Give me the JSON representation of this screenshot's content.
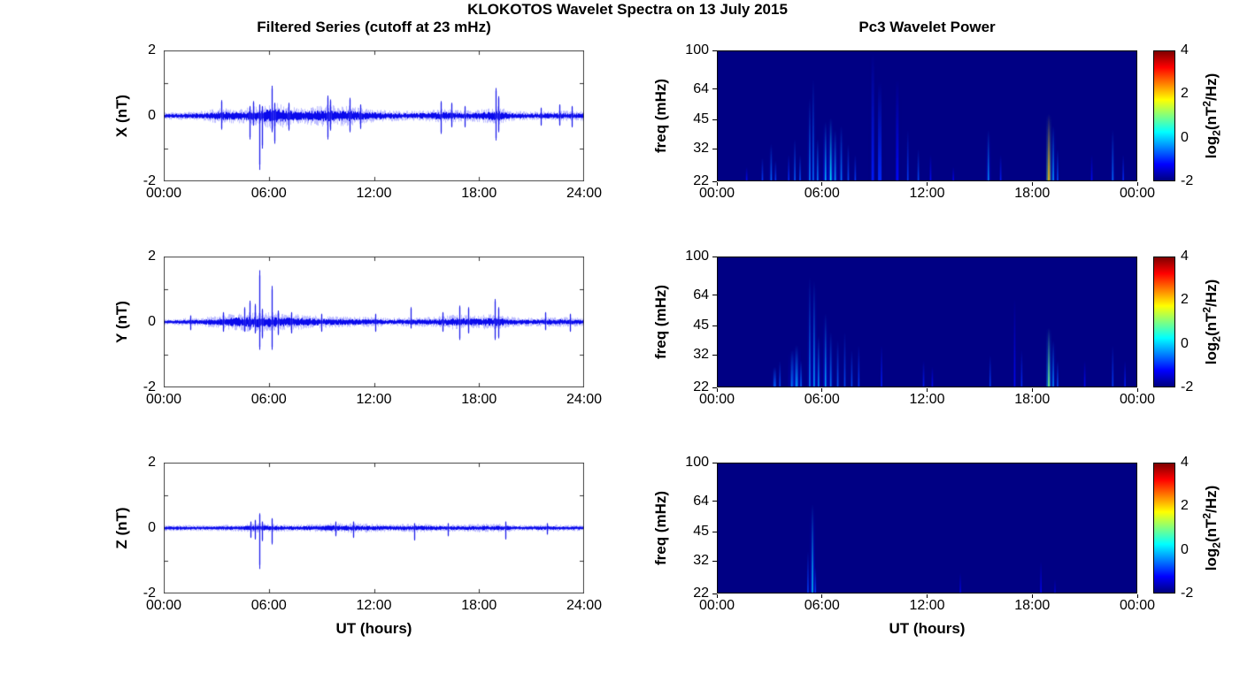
{
  "figure": {
    "title": "KLOKOTOS Wavelet Spectra on 13 July 2015",
    "left_title": "Filtered Series (cutoff at 23 mHz)",
    "right_title": "Pc3 Wavelet Power",
    "xlabel": "UT (hours)",
    "colorbar_label": "log2(nT^2/Hz)",
    "colorbar_label_parts": {
      "prefix": "log",
      "sub": "2",
      "mid": "(nT",
      "sup": "2",
      "suffix": "/Hz)"
    },
    "trace_color": "#0000ee",
    "heatmap_background": "#000084"
  },
  "chart_data": [
    {
      "id": "series-x",
      "type": "line",
      "component": "X",
      "ylabel": "X (nT)",
      "xlim_hours": [
        0,
        24
      ],
      "ylim": [
        -2,
        2
      ],
      "xtick_values": [
        0,
        6,
        12,
        18,
        24
      ],
      "xtick_labels": [
        "00:00",
        "06:00",
        "12:00",
        "18:00",
        "24:00"
      ],
      "ytick_values": [
        2,
        0,
        -2
      ],
      "ytick_labels": [
        "2",
        "0",
        "-2"
      ],
      "line_color": "#0000ee",
      "seed": 11,
      "noise_envelope_nT": [
        [
          0,
          0.06
        ],
        [
          1.5,
          0.07
        ],
        [
          2.5,
          0.09
        ],
        [
          3,
          0.12
        ],
        [
          3.5,
          0.13
        ],
        [
          4,
          0.12
        ],
        [
          4.5,
          0.13
        ],
        [
          5,
          0.15
        ],
        [
          5.5,
          0.17
        ],
        [
          6,
          0.21
        ],
        [
          6.5,
          0.22
        ],
        [
          7,
          0.18
        ],
        [
          7.5,
          0.15
        ],
        [
          8,
          0.14
        ],
        [
          9,
          0.17
        ],
        [
          9.5,
          0.18
        ],
        [
          10,
          0.16
        ],
        [
          10.5,
          0.17
        ],
        [
          11,
          0.14
        ],
        [
          11.5,
          0.12
        ],
        [
          12,
          0.11
        ],
        [
          12.5,
          0.1
        ],
        [
          13,
          0.09
        ],
        [
          14,
          0.08
        ],
        [
          15,
          0.09
        ],
        [
          16,
          0.12
        ],
        [
          16.5,
          0.11
        ],
        [
          17,
          0.09
        ],
        [
          18,
          0.1
        ],
        [
          18.7,
          0.13
        ],
        [
          19,
          0.17
        ],
        [
          19.4,
          0.12
        ],
        [
          20,
          0.08
        ],
        [
          21,
          0.07
        ],
        [
          22,
          0.08
        ],
        [
          22.8,
          0.09
        ],
        [
          23.5,
          0.08
        ],
        [
          24,
          0.08
        ]
      ],
      "spikes_nT": [
        [
          3.3,
          -0.42,
          0.48
        ],
        [
          4.9,
          -0.72,
          0.3
        ],
        [
          5.1,
          -0.3,
          0.45
        ],
        [
          5.46,
          -1.65,
          0.35
        ],
        [
          5.62,
          -1.0,
          0.3
        ],
        [
          6.17,
          -0.5,
          0.92
        ],
        [
          6.3,
          -0.85,
          0.4
        ],
        [
          7.1,
          -0.45,
          0.4
        ],
        [
          9.35,
          -0.72,
          0.62
        ],
        [
          9.5,
          -0.45,
          0.5
        ],
        [
          10.6,
          -0.5,
          0.55
        ],
        [
          11.2,
          -0.4,
          0.35
        ],
        [
          15.8,
          -0.55,
          0.45
        ],
        [
          16.4,
          -0.35,
          0.4
        ],
        [
          17.2,
          -0.35,
          0.3
        ],
        [
          18.95,
          -0.75,
          0.85
        ],
        [
          19.1,
          -0.5,
          0.6
        ],
        [
          21.5,
          -0.3,
          0.25
        ],
        [
          22.6,
          -0.3,
          0.35
        ],
        [
          23.3,
          -0.35,
          0.3
        ]
      ]
    },
    {
      "id": "series-y",
      "type": "line",
      "component": "Y",
      "ylabel": "Y (nT)",
      "xlim_hours": [
        0,
        24
      ],
      "ylim": [
        -2,
        2
      ],
      "xtick_values": [
        0,
        6,
        12,
        18,
        24
      ],
      "xtick_labels": [
        "00:00",
        "06:00",
        "12:00",
        "18:00",
        "24:00"
      ],
      "ytick_values": [
        2,
        0,
        -2
      ],
      "ytick_labels": [
        "2",
        "0",
        "-2"
      ],
      "line_color": "#0000ee",
      "seed": 22,
      "noise_envelope_nT": [
        [
          0,
          0.05
        ],
        [
          1,
          0.06
        ],
        [
          2,
          0.07
        ],
        [
          3,
          0.1
        ],
        [
          3.5,
          0.12
        ],
        [
          4,
          0.14
        ],
        [
          4.5,
          0.15
        ],
        [
          5,
          0.16
        ],
        [
          5.5,
          0.17
        ],
        [
          6,
          0.16
        ],
        [
          6.5,
          0.15
        ],
        [
          7,
          0.14
        ],
        [
          7.5,
          0.13
        ],
        [
          8,
          0.12
        ],
        [
          9,
          0.1
        ],
        [
          10,
          0.09
        ],
        [
          11,
          0.09
        ],
        [
          12,
          0.08
        ],
        [
          13,
          0.07
        ],
        [
          14,
          0.08
        ],
        [
          15,
          0.08
        ],
        [
          16,
          0.1
        ],
        [
          16.5,
          0.12
        ],
        [
          17,
          0.12
        ],
        [
          17.5,
          0.11
        ],
        [
          18,
          0.11
        ],
        [
          18.7,
          0.13
        ],
        [
          19,
          0.13
        ],
        [
          19.5,
          0.1
        ],
        [
          20,
          0.08
        ],
        [
          21,
          0.07
        ],
        [
          22,
          0.08
        ],
        [
          23,
          0.08
        ],
        [
          24,
          0.07
        ]
      ],
      "spikes_nT": [
        [
          1.5,
          -0.25,
          0.2
        ],
        [
          3.4,
          -0.3,
          0.3
        ],
        [
          4.6,
          -0.3,
          0.45
        ],
        [
          4.9,
          -0.25,
          0.65
        ],
        [
          5.2,
          -0.35,
          0.55
        ],
        [
          5.46,
          -0.85,
          1.58
        ],
        [
          5.6,
          -0.5,
          0.4
        ],
        [
          6.17,
          -0.85,
          1.1
        ],
        [
          6.5,
          -0.4,
          0.35
        ],
        [
          7.3,
          -0.35,
          0.3
        ],
        [
          9.0,
          -0.3,
          0.25
        ],
        [
          12.1,
          -0.3,
          0.25
        ],
        [
          14.1,
          -0.2,
          0.45
        ],
        [
          15.9,
          -0.3,
          0.3
        ],
        [
          16.9,
          -0.55,
          0.5
        ],
        [
          17.4,
          -0.35,
          0.45
        ],
        [
          18.9,
          -0.55,
          0.7
        ],
        [
          19.1,
          -0.5,
          0.45
        ],
        [
          21.8,
          -0.25,
          0.3
        ],
        [
          23.2,
          -0.3,
          0.25
        ]
      ]
    },
    {
      "id": "series-z",
      "type": "line",
      "component": "Z",
      "ylabel": "Z (nT)",
      "xlim_hours": [
        0,
        24
      ],
      "ylim": [
        -2,
        2
      ],
      "xtick_values": [
        0,
        6,
        12,
        18,
        24
      ],
      "xtick_labels": [
        "00:00",
        "06:00",
        "12:00",
        "18:00",
        "24:00"
      ],
      "ytick_values": [
        2,
        0,
        -2
      ],
      "ytick_labels": [
        "2",
        "0",
        "-2"
      ],
      "line_color": "#0000ee",
      "seed": 33,
      "noise_envelope_nT": [
        [
          0,
          0.05
        ],
        [
          3,
          0.05
        ],
        [
          4.5,
          0.06
        ],
        [
          5,
          0.07
        ],
        [
          5.5,
          0.08
        ],
        [
          6,
          0.07
        ],
        [
          7,
          0.06
        ],
        [
          8,
          0.06
        ],
        [
          9,
          0.07
        ],
        [
          9.5,
          0.08
        ],
        [
          10,
          0.08
        ],
        [
          11,
          0.08
        ],
        [
          12,
          0.07
        ],
        [
          13,
          0.06
        ],
        [
          14,
          0.07
        ],
        [
          15,
          0.07
        ],
        [
          16,
          0.06
        ],
        [
          17,
          0.06
        ],
        [
          18,
          0.07
        ],
        [
          19,
          0.07
        ],
        [
          19.5,
          0.07
        ],
        [
          20,
          0.05
        ],
        [
          21,
          0.05
        ],
        [
          22,
          0.06
        ],
        [
          23,
          0.05
        ],
        [
          24,
          0.05
        ]
      ],
      "spikes_nT": [
        [
          4.95,
          -0.3,
          0.2
        ],
        [
          5.2,
          -0.35,
          0.25
        ],
        [
          5.46,
          -1.25,
          0.45
        ],
        [
          5.6,
          -0.4,
          0.2
        ],
        [
          6.17,
          -0.5,
          0.3
        ],
        [
          9.8,
          -0.25,
          0.2
        ],
        [
          10.8,
          -0.3,
          0.2
        ],
        [
          14.3,
          -0.38,
          0.15
        ],
        [
          16.2,
          -0.25,
          0.15
        ],
        [
          19.5,
          -0.35,
          0.2
        ],
        [
          21.9,
          -0.2,
          0.15
        ]
      ]
    },
    {
      "id": "wavelet-x",
      "type": "heatmap",
      "component": "X",
      "ylabel": "freq (mHz)",
      "freq_lim_mHz": [
        22,
        100
      ],
      "freq_scale": "log",
      "xtick_values": [
        0,
        6,
        12,
        18,
        24
      ],
      "xtick_labels": [
        "00:00",
        "06:00",
        "12:00",
        "18:00",
        "00:00"
      ],
      "ytick_values": [
        100,
        64,
        45,
        32,
        22
      ],
      "ytick_labels": [
        "100",
        "64",
        "45",
        "32",
        "22"
      ],
      "power_lim_log2": [
        -2,
        4
      ],
      "background_power": -2,
      "background_color": "#000084",
      "colorbar_tick_values": [
        4,
        2,
        0,
        -2
      ],
      "colorbar_tick_labels": [
        "4",
        "2",
        "0",
        "-2"
      ],
      "events": [
        [
          1.7,
          26,
          -1.2
        ],
        [
          2.6,
          29,
          -0.9
        ],
        [
          3.1,
          34,
          -0.6
        ],
        [
          3.35,
          28,
          -0.9
        ],
        [
          4.1,
          30,
          -1.0
        ],
        [
          4.45,
          36,
          -0.7
        ],
        [
          4.75,
          30,
          -0.8
        ],
        [
          5.3,
          58,
          -0.5
        ],
        [
          5.5,
          72,
          -0.6
        ],
        [
          5.75,
          36,
          -0.5
        ],
        [
          6.2,
          44,
          -0.1
        ],
        [
          6.5,
          46,
          0.2
        ],
        [
          6.75,
          40,
          -0.3
        ],
        [
          7.1,
          42,
          -0.5
        ],
        [
          7.5,
          34,
          -0.8
        ],
        [
          7.9,
          30,
          -0.9
        ],
        [
          8.9,
          98,
          -1.1,
          3
        ],
        [
          9.3,
          70,
          -1.0,
          4
        ],
        [
          10.3,
          72,
          -1.2,
          3
        ],
        [
          10.9,
          40,
          -0.9
        ],
        [
          11.5,
          32,
          -0.8
        ],
        [
          12.2,
          30,
          -1.2
        ],
        [
          13.5,
          26,
          -1.3
        ],
        [
          15.5,
          40,
          -0.4
        ],
        [
          16.2,
          30,
          -1.1
        ],
        [
          18.95,
          48,
          2.2
        ],
        [
          19.2,
          42,
          -0.3
        ],
        [
          19.45,
          32,
          -0.8
        ],
        [
          21.4,
          30,
          -1.2
        ],
        [
          22.6,
          40,
          -0.6
        ],
        [
          23.2,
          30,
          -1.0
        ]
      ]
    },
    {
      "id": "wavelet-y",
      "type": "heatmap",
      "component": "Y",
      "ylabel": "freq (mHz)",
      "freq_lim_mHz": [
        22,
        100
      ],
      "freq_scale": "log",
      "xtick_values": [
        0,
        6,
        12,
        18,
        24
      ],
      "xtick_labels": [
        "00:00",
        "06:00",
        "12:00",
        "18:00",
        "00:00"
      ],
      "ytick_values": [
        100,
        64,
        45,
        32,
        22
      ],
      "ytick_labels": [
        "100",
        "64",
        "45",
        "32",
        "22"
      ],
      "power_lim_log2": [
        -2,
        4
      ],
      "background_power": -2,
      "background_color": "#000084",
      "colorbar_tick_values": [
        4,
        2,
        0,
        -2
      ],
      "colorbar_tick_labels": [
        "4",
        "2",
        "0",
        "-2"
      ],
      "events": [
        [
          3.3,
          28,
          -0.7,
          3
        ],
        [
          3.6,
          30,
          -0.8
        ],
        [
          4.3,
          34,
          -0.5,
          3
        ],
        [
          4.55,
          36,
          -0.4,
          3
        ],
        [
          4.8,
          30,
          -0.6
        ],
        [
          5.3,
          80,
          -0.5
        ],
        [
          5.55,
          76,
          -0.3
        ],
        [
          5.8,
          40,
          -0.4
        ],
        [
          6.2,
          52,
          -0.2
        ],
        [
          6.5,
          42,
          -0.5
        ],
        [
          6.9,
          38,
          -0.7
        ],
        [
          7.3,
          42,
          -0.8
        ],
        [
          7.7,
          34,
          -0.8
        ],
        [
          8.1,
          36,
          -0.9
        ],
        [
          9.4,
          36,
          -1.1
        ],
        [
          11.8,
          30,
          -1.1
        ],
        [
          12.3,
          28,
          -1.2
        ],
        [
          15.6,
          32,
          -0.9
        ],
        [
          17.0,
          62,
          -1.2
        ],
        [
          17.4,
          34,
          -1.0
        ],
        [
          18.95,
          44,
          1.0
        ],
        [
          19.2,
          38,
          -0.4
        ],
        [
          19.45,
          30,
          -0.8
        ],
        [
          21.0,
          30,
          -1.2
        ],
        [
          22.6,
          36,
          -0.9
        ],
        [
          23.3,
          30,
          -1.1
        ]
      ]
    },
    {
      "id": "wavelet-z",
      "type": "heatmap",
      "component": "Z",
      "ylabel": "freq (mHz)",
      "freq_lim_mHz": [
        22,
        100
      ],
      "freq_scale": "log",
      "xtick_values": [
        0,
        6,
        12,
        18,
        24
      ],
      "xtick_labels": [
        "00:00",
        "06:00",
        "12:00",
        "18:00",
        "00:00"
      ],
      "ytick_values": [
        100,
        64,
        45,
        32,
        22
      ],
      "ytick_labels": [
        "100",
        "64",
        "45",
        "32",
        "22"
      ],
      "power_lim_log2": [
        -2,
        4
      ],
      "background_power": -2,
      "background_color": "#000084",
      "colorbar_tick_values": [
        4,
        2,
        0,
        -2
      ],
      "colorbar_tick_labels": [
        "4",
        "2",
        "0",
        "-2"
      ],
      "events": [
        [
          5.2,
          36,
          -0.9
        ],
        [
          5.46,
          62,
          0.0
        ],
        [
          5.62,
          30,
          -0.9
        ],
        [
          13.9,
          28,
          -1.4
        ],
        [
          18.5,
          32,
          -1.3
        ],
        [
          19.3,
          26,
          -1.5
        ]
      ]
    }
  ]
}
